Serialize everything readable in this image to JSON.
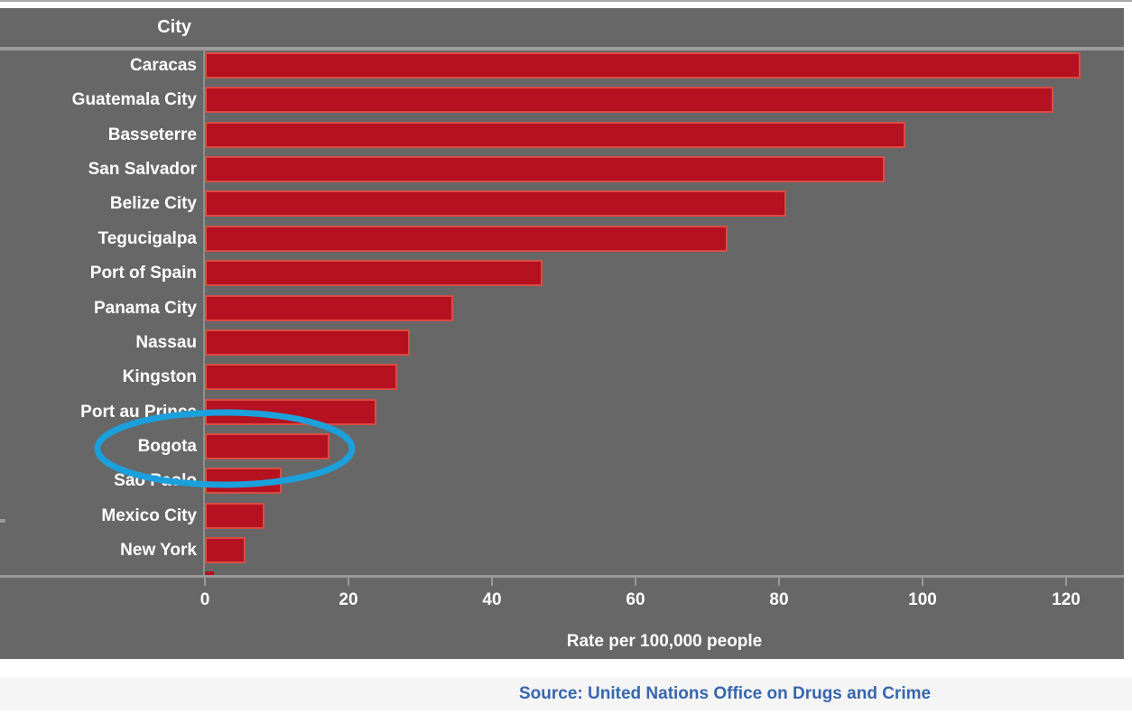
{
  "header": {
    "title": "City"
  },
  "chart_data": {
    "type": "bar",
    "orientation": "horizontal",
    "title": "",
    "xlabel": "Rate per 100,000 people",
    "ylabel": "City",
    "categories": [
      "Caracas",
      "Guatemala City",
      "Basseterre",
      "San Salvador",
      "Belize City",
      "Tegucigalpa",
      "Port of Spain",
      "Panama City",
      "Nassau",
      "Kingston",
      "Port au Prince",
      "Bogota",
      "Sao Paolo",
      "Mexico City",
      "New York"
    ],
    "values": [
      122,
      118.2,
      97.6,
      94.7,
      81,
      72.8,
      47.1,
      34.6,
      28.5,
      26.8,
      23.9,
      17.4,
      10.7,
      8.3,
      5.6
    ],
    "partial_bottom_bar_value": 1.2,
    "x_ticks": [
      0,
      20,
      40,
      60,
      80,
      100,
      120
    ],
    "xlim": [
      0,
      128
    ],
    "grid": false,
    "legend": "none",
    "colors": {
      "bar_fill": "#b51120",
      "bar_border": "#d94d43",
      "plot_background": "#676767",
      "axis_line": "#9a9a9a",
      "label_text": "#ffffff"
    },
    "annotation": {
      "shape": "ellipse",
      "highlighted_category": "Bogota",
      "color": "#1ba0dc"
    }
  },
  "footer": {
    "source_text": "Source: United Nations Office on Drugs and Crime",
    "text_color": "#3766ae"
  }
}
